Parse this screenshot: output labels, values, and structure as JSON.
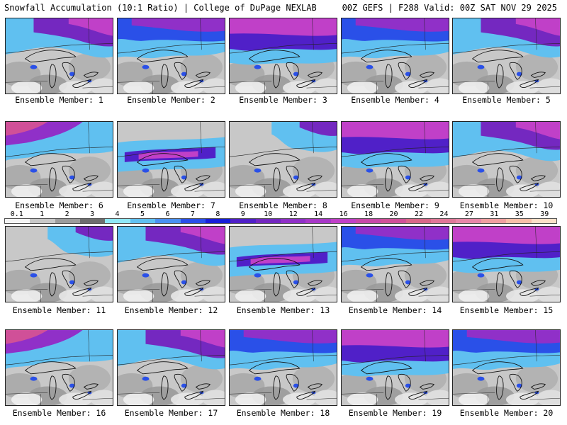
{
  "header": {
    "left": "Snowfall Accumulation (10:1 Ratio) | College of DuPage NEXLAB",
    "right": "00Z GEFS | F288 Valid: 00Z SAT NOV 29 2025"
  },
  "colorbar": {
    "levels": [
      "0.1",
      "1",
      "2",
      "3",
      "4",
      "5",
      "6",
      "7",
      "8",
      "9",
      "10",
      "12",
      "14",
      "16",
      "18",
      "20",
      "22",
      "24",
      "27",
      "31",
      "35",
      "39"
    ],
    "colors": [
      "#f4f4f4",
      "#c8c8c8",
      "#9c9c9c",
      "#6e6e6e",
      "#8fe8f8",
      "#60c0f0",
      "#4a90f0",
      "#2a50e8",
      "#1820d8",
      "#5020c8",
      "#7428c0",
      "#9030c8",
      "#a838c8",
      "#c040c8",
      "#c848a8",
      "#d05098",
      "#d86888",
      "#e07898",
      "#e888a8",
      "#f0a0a0",
      "#f8c0a8",
      "#fce0c8"
    ]
  },
  "panels": [
    {
      "label": "Ensemble Member: 1",
      "pattern": "heavy-east"
    },
    {
      "label": "Ensemble Member: 2",
      "pattern": "heavy-north"
    },
    {
      "label": "Ensemble Member: 3",
      "pattern": "heavy-band"
    },
    {
      "label": "Ensemble Member: 4",
      "pattern": "heavy-north"
    },
    {
      "label": "Ensemble Member: 5",
      "pattern": "heavy-east"
    },
    {
      "label": "Ensemble Member: 6",
      "pattern": "heavy-west"
    },
    {
      "label": "Ensemble Member: 7",
      "pattern": "band-center"
    },
    {
      "label": "Ensemble Member: 8",
      "pattern": "light"
    },
    {
      "label": "Ensemble Member: 9",
      "pattern": "heavy-band"
    },
    {
      "label": "Ensemble Member: 10",
      "pattern": "heavy-east"
    },
    {
      "label": "Ensemble Member: 11",
      "pattern": "light"
    },
    {
      "label": "Ensemble Member: 12",
      "pattern": "heavy-east"
    },
    {
      "label": "Ensemble Member: 13",
      "pattern": "band-center"
    },
    {
      "label": "Ensemble Member: 14",
      "pattern": "heavy-north"
    },
    {
      "label": "Ensemble Member: 15",
      "pattern": "heavy-band"
    },
    {
      "label": "Ensemble Member: 16",
      "pattern": "heavy-west"
    },
    {
      "label": "Ensemble Member: 17",
      "pattern": "heavy-east"
    },
    {
      "label": "Ensemble Member: 18",
      "pattern": "heavy-north"
    },
    {
      "label": "Ensemble Member: 19",
      "pattern": "heavy-band"
    },
    {
      "label": "Ensemble Member: 20",
      "pattern": "heavy-north"
    }
  ]
}
